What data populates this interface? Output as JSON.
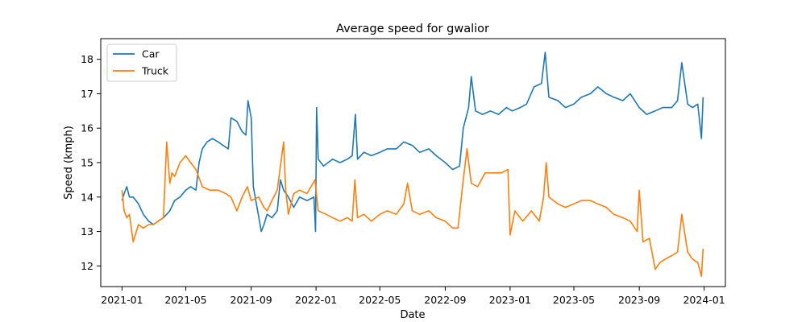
{
  "chart_data": {
    "type": "line",
    "title": "Average speed for gwalior",
    "xlabel": "Date",
    "ylabel": "Speed (kmph)",
    "xlim": [
      "2020-11-22",
      "2024-02-10"
    ],
    "ylim": [
      11.4,
      18.6
    ],
    "x_ticks": [
      "2021-01",
      "2021-05",
      "2021-09",
      "2022-01",
      "2022-05",
      "2022-09",
      "2023-01",
      "2023-05",
      "2023-09",
      "2024-01"
    ],
    "y_ticks": [
      12,
      13,
      14,
      15,
      16,
      17,
      18
    ],
    "grid": false,
    "legend": {
      "placement": "top-left"
    },
    "series": [
      {
        "name": "Car",
        "color": "#1f77b4",
        "points": [
          [
            "2021-01-01",
            13.9
          ],
          [
            "2021-01-05",
            14.1
          ],
          [
            "2021-01-10",
            14.3
          ],
          [
            "2021-01-15",
            14.0
          ],
          [
            "2021-01-22",
            14.0
          ],
          [
            "2021-02-01",
            13.8
          ],
          [
            "2021-02-10",
            13.5
          ],
          [
            "2021-02-20",
            13.3
          ],
          [
            "2021-03-01",
            13.2
          ],
          [
            "2021-03-10",
            13.3
          ],
          [
            "2021-03-20",
            13.4
          ],
          [
            "2021-04-01",
            13.6
          ],
          [
            "2021-04-10",
            13.9
          ],
          [
            "2021-04-20",
            14.0
          ],
          [
            "2021-05-01",
            14.2
          ],
          [
            "2021-05-10",
            14.3
          ],
          [
            "2021-05-20",
            14.2
          ],
          [
            "2021-05-26",
            15.0
          ],
          [
            "2021-06-01",
            15.4
          ],
          [
            "2021-06-10",
            15.6
          ],
          [
            "2021-06-20",
            15.7
          ],
          [
            "2021-07-01",
            15.6
          ],
          [
            "2021-07-10",
            15.5
          ],
          [
            "2021-07-20",
            15.4
          ],
          [
            "2021-07-25",
            16.3
          ],
          [
            "2021-08-05",
            16.2
          ],
          [
            "2021-08-15",
            15.9
          ],
          [
            "2021-08-22",
            15.8
          ],
          [
            "2021-08-26",
            16.8
          ],
          [
            "2021-09-01",
            16.3
          ],
          [
            "2021-09-05",
            14.3
          ],
          [
            "2021-09-12",
            13.7
          ],
          [
            "2021-09-20",
            13.0
          ],
          [
            "2021-09-25",
            13.2
          ],
          [
            "2021-10-01",
            13.5
          ],
          [
            "2021-10-10",
            13.4
          ],
          [
            "2021-10-20",
            13.6
          ],
          [
            "2021-10-26",
            14.5
          ],
          [
            "2021-11-01",
            14.2
          ],
          [
            "2021-11-10",
            14.0
          ],
          [
            "2021-11-20",
            13.7
          ],
          [
            "2021-12-01",
            14.0
          ],
          [
            "2021-12-15",
            13.9
          ],
          [
            "2021-12-28",
            14.0
          ],
          [
            "2021-12-31",
            13.0
          ],
          [
            "2022-01-02",
            16.6
          ],
          [
            "2022-01-05",
            15.1
          ],
          [
            "2022-01-15",
            14.9
          ],
          [
            "2022-02-01",
            15.1
          ],
          [
            "2022-02-15",
            15.0
          ],
          [
            "2022-03-01",
            15.1
          ],
          [
            "2022-03-10",
            15.2
          ],
          [
            "2022-03-16",
            16.4
          ],
          [
            "2022-03-20",
            15.1
          ],
          [
            "2022-04-01",
            15.3
          ],
          [
            "2022-04-15",
            15.2
          ],
          [
            "2022-05-01",
            15.3
          ],
          [
            "2022-05-15",
            15.4
          ],
          [
            "2022-06-01",
            15.4
          ],
          [
            "2022-06-15",
            15.6
          ],
          [
            "2022-07-01",
            15.5
          ],
          [
            "2022-07-15",
            15.3
          ],
          [
            "2022-08-01",
            15.4
          ],
          [
            "2022-08-15",
            15.2
          ],
          [
            "2022-09-01",
            15.0
          ],
          [
            "2022-09-15",
            14.8
          ],
          [
            "2022-09-28",
            14.9
          ],
          [
            "2022-10-05",
            16.0
          ],
          [
            "2022-10-15",
            16.6
          ],
          [
            "2022-10-20",
            17.5
          ],
          [
            "2022-10-28",
            16.5
          ],
          [
            "2022-11-10",
            16.4
          ],
          [
            "2022-11-25",
            16.5
          ],
          [
            "2022-12-10",
            16.4
          ],
          [
            "2022-12-25",
            16.6
          ],
          [
            "2023-01-05",
            16.5
          ],
          [
            "2023-01-20",
            16.6
          ],
          [
            "2023-02-01",
            16.7
          ],
          [
            "2023-02-15",
            17.2
          ],
          [
            "2023-03-01",
            17.3
          ],
          [
            "2023-03-08",
            18.2
          ],
          [
            "2023-03-15",
            16.9
          ],
          [
            "2023-04-01",
            16.8
          ],
          [
            "2023-04-15",
            16.6
          ],
          [
            "2023-05-01",
            16.7
          ],
          [
            "2023-05-15",
            16.9
          ],
          [
            "2023-06-01",
            17.0
          ],
          [
            "2023-06-15",
            17.2
          ],
          [
            "2023-07-01",
            17.0
          ],
          [
            "2023-07-15",
            16.9
          ],
          [
            "2023-08-01",
            16.8
          ],
          [
            "2023-08-15",
            17.0
          ],
          [
            "2023-09-01",
            16.6
          ],
          [
            "2023-09-15",
            16.4
          ],
          [
            "2023-10-01",
            16.5
          ],
          [
            "2023-10-15",
            16.6
          ],
          [
            "2023-11-01",
            16.6
          ],
          [
            "2023-11-12",
            16.8
          ],
          [
            "2023-11-20",
            17.9
          ],
          [
            "2023-12-01",
            16.7
          ],
          [
            "2023-12-10",
            16.6
          ],
          [
            "2023-12-20",
            16.7
          ],
          [
            "2023-12-27",
            15.7
          ],
          [
            "2023-12-30",
            16.9
          ]
        ]
      },
      {
        "name": "Truck",
        "color": "#ff7f0e",
        "points": [
          [
            "2021-01-01",
            14.2
          ],
          [
            "2021-01-05",
            13.6
          ],
          [
            "2021-01-10",
            13.4
          ],
          [
            "2021-01-15",
            13.5
          ],
          [
            "2021-01-22",
            12.7
          ],
          [
            "2021-02-01",
            13.2
          ],
          [
            "2021-02-10",
            13.1
          ],
          [
            "2021-02-20",
            13.2
          ],
          [
            "2021-03-01",
            13.2
          ],
          [
            "2021-03-10",
            13.3
          ],
          [
            "2021-03-20",
            13.4
          ],
          [
            "2021-03-26",
            15.6
          ],
          [
            "2021-04-01",
            14.4
          ],
          [
            "2021-04-05",
            14.7
          ],
          [
            "2021-04-10",
            14.6
          ],
          [
            "2021-04-20",
            15.0
          ],
          [
            "2021-05-01",
            15.2
          ],
          [
            "2021-05-10",
            15.0
          ],
          [
            "2021-05-20",
            14.8
          ],
          [
            "2021-06-01",
            14.3
          ],
          [
            "2021-06-15",
            14.2
          ],
          [
            "2021-07-01",
            14.2
          ],
          [
            "2021-07-15",
            14.1
          ],
          [
            "2021-07-25",
            14.0
          ],
          [
            "2021-08-05",
            13.6
          ],
          [
            "2021-08-15",
            14.0
          ],
          [
            "2021-08-25",
            14.3
          ],
          [
            "2021-09-01",
            13.9
          ],
          [
            "2021-09-15",
            14.0
          ],
          [
            "2021-09-25",
            13.7
          ],
          [
            "2021-10-01",
            13.6
          ],
          [
            "2021-10-10",
            13.9
          ],
          [
            "2021-10-20",
            14.2
          ],
          [
            "2021-11-01",
            15.6
          ],
          [
            "2021-11-05",
            14.2
          ],
          [
            "2021-11-10",
            13.5
          ],
          [
            "2021-11-20",
            14.1
          ],
          [
            "2021-12-01",
            14.2
          ],
          [
            "2021-12-15",
            14.1
          ],
          [
            "2021-12-30",
            14.5
          ],
          [
            "2022-01-05",
            13.6
          ],
          [
            "2022-01-20",
            13.5
          ],
          [
            "2022-02-01",
            13.4
          ],
          [
            "2022-02-15",
            13.3
          ],
          [
            "2022-03-01",
            13.4
          ],
          [
            "2022-03-10",
            13.3
          ],
          [
            "2022-03-15",
            14.5
          ],
          [
            "2022-03-20",
            13.4
          ],
          [
            "2022-04-01",
            13.5
          ],
          [
            "2022-04-15",
            13.3
          ],
          [
            "2022-05-01",
            13.5
          ],
          [
            "2022-05-15",
            13.6
          ],
          [
            "2022-06-01",
            13.5
          ],
          [
            "2022-06-15",
            13.8
          ],
          [
            "2022-06-22",
            14.4
          ],
          [
            "2022-07-01",
            13.6
          ],
          [
            "2022-07-15",
            13.5
          ],
          [
            "2022-08-01",
            13.6
          ],
          [
            "2022-08-15",
            13.4
          ],
          [
            "2022-09-01",
            13.3
          ],
          [
            "2022-09-15",
            13.1
          ],
          [
            "2022-09-25",
            13.1
          ],
          [
            "2022-10-05",
            14.5
          ],
          [
            "2022-10-12",
            15.4
          ],
          [
            "2022-10-20",
            14.4
          ],
          [
            "2022-11-01",
            14.3
          ],
          [
            "2022-11-15",
            14.7
          ],
          [
            "2022-12-01",
            14.7
          ],
          [
            "2022-12-15",
            14.7
          ],
          [
            "2022-12-28",
            14.8
          ],
          [
            "2023-01-01",
            12.9
          ],
          [
            "2023-01-10",
            13.6
          ],
          [
            "2023-01-25",
            13.3
          ],
          [
            "2023-02-10",
            13.6
          ],
          [
            "2023-02-25",
            13.3
          ],
          [
            "2023-03-05",
            14.0
          ],
          [
            "2023-03-10",
            15.0
          ],
          [
            "2023-03-15",
            14.0
          ],
          [
            "2023-04-01",
            13.8
          ],
          [
            "2023-04-15",
            13.7
          ],
          [
            "2023-05-01",
            13.8
          ],
          [
            "2023-05-15",
            13.9
          ],
          [
            "2023-06-01",
            13.9
          ],
          [
            "2023-06-15",
            13.8
          ],
          [
            "2023-07-01",
            13.7
          ],
          [
            "2023-07-15",
            13.5
          ],
          [
            "2023-08-01",
            13.4
          ],
          [
            "2023-08-15",
            13.3
          ],
          [
            "2023-08-28",
            13.0
          ],
          [
            "2023-09-01",
            14.2
          ],
          [
            "2023-09-08",
            12.7
          ],
          [
            "2023-09-20",
            12.8
          ],
          [
            "2023-10-01",
            11.9
          ],
          [
            "2023-10-10",
            12.1
          ],
          [
            "2023-10-20",
            12.2
          ],
          [
            "2023-11-01",
            12.3
          ],
          [
            "2023-11-12",
            12.4
          ],
          [
            "2023-11-20",
            13.5
          ],
          [
            "2023-12-01",
            12.4
          ],
          [
            "2023-12-10",
            12.2
          ],
          [
            "2023-12-20",
            12.1
          ],
          [
            "2023-12-27",
            11.7
          ],
          [
            "2023-12-30",
            12.5
          ]
        ]
      }
    ]
  }
}
